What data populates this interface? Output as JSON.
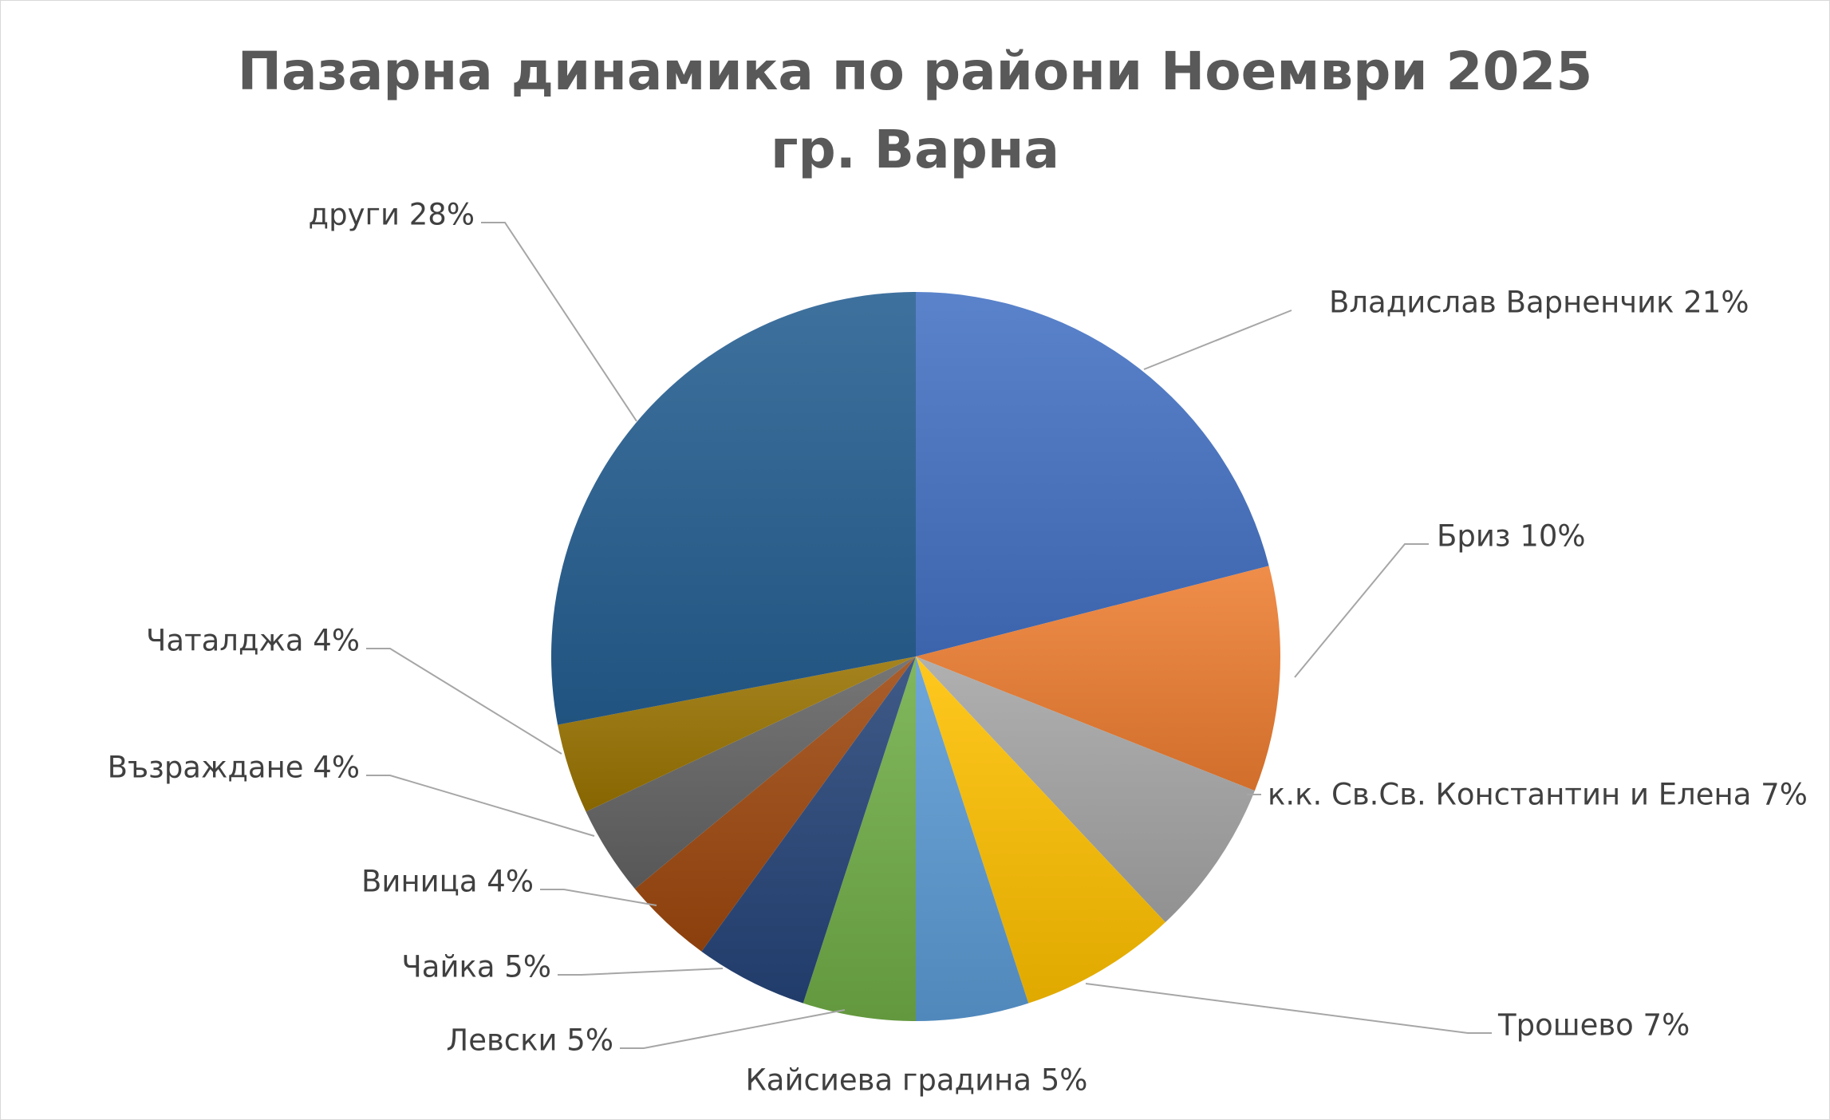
{
  "chart_data": {
    "type": "pie",
    "title": [
      "Пазарна динамика по райони Ноември 2025",
      "гр. Варна"
    ],
    "start_angle_deg": 0,
    "direction": "clockwise",
    "slices": [
      {
        "label": "Владислав Варненчик 21%",
        "value": 21,
        "color": "#4472c4"
      },
      {
        "label": "Бриз 10%",
        "value": 10,
        "color": "#ed7d31"
      },
      {
        "label": "к.к. Св.Св. Константин и Елена 7%",
        "value": 7,
        "color": "#a5a5a5"
      },
      {
        "label": "Трошево 7%",
        "value": 7,
        "color": "#ffc000"
      },
      {
        "label": "Кайсиева градина 5%",
        "value": 5,
        "color": "#5b9bd5"
      },
      {
        "label": "Левски 5%",
        "value": 5,
        "color": "#70ad47"
      },
      {
        "label": "Чайка 5%",
        "value": 5,
        "color": "#264478"
      },
      {
        "label": "Виница 4%",
        "value": 4,
        "color": "#9e480e"
      },
      {
        "label": "Възраждане 4%",
        "value": 4,
        "color": "#636363"
      },
      {
        "label": "Чаталджа 4%",
        "value": 4,
        "color": "#997300"
      },
      {
        "label": "други 28%",
        "value": 28,
        "color": "#255e91"
      }
    ]
  }
}
